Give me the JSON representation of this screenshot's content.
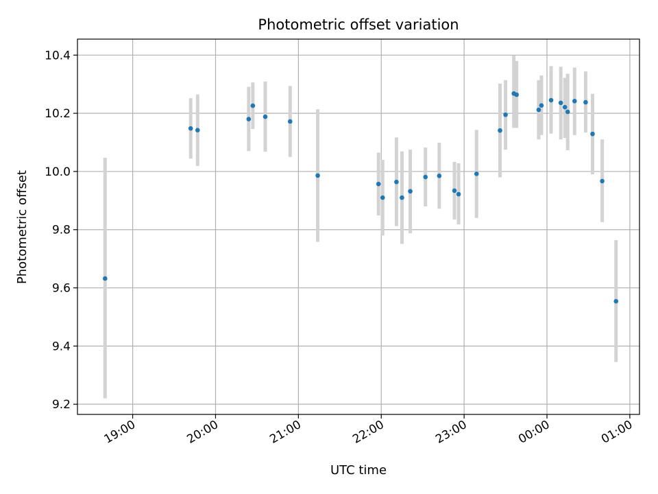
{
  "chart_data": {
    "type": "scatter",
    "title": "Photometric offset variation",
    "xlabel": "UTC time",
    "ylabel": "Photometric offset",
    "x_axis": {
      "kind": "time",
      "range": [
        "18:20",
        "01:07"
      ],
      "ticks": [
        "19:00",
        "20:00",
        "21:00",
        "22:00",
        "23:00",
        "00:00",
        "01:00"
      ]
    },
    "ylim": [
      9.165,
      10.455
    ],
    "yticks": [
      "9.2",
      "9.4",
      "9.6",
      "9.8",
      "10.0",
      "10.2",
      "10.4"
    ],
    "grid": true,
    "colors": {
      "points": "#1f77b4",
      "errorbars": "#d3d3d3",
      "grid": "#b0b0b0"
    },
    "points": [
      {
        "t": "18:40",
        "y": 9.632,
        "lo": 9.22,
        "hi": 10.047
      },
      {
        "t": "19:42",
        "y": 10.148,
        "lo": 10.044,
        "hi": 10.252
      },
      {
        "t": "19:47",
        "y": 10.142,
        "lo": 10.019,
        "hi": 10.265
      },
      {
        "t": "20:24",
        "y": 10.18,
        "lo": 10.07,
        "hi": 10.291
      },
      {
        "t": "20:27",
        "y": 10.226,
        "lo": 10.146,
        "hi": 10.306
      },
      {
        "t": "20:36",
        "y": 10.188,
        "lo": 10.068,
        "hi": 10.309
      },
      {
        "t": "20:54",
        "y": 10.172,
        "lo": 10.05,
        "hi": 10.294
      },
      {
        "t": "21:14",
        "y": 9.986,
        "lo": 9.758,
        "hi": 10.214
      },
      {
        "t": "21:58",
        "y": 9.957,
        "lo": 9.849,
        "hi": 10.065
      },
      {
        "t": "22:01",
        "y": 9.91,
        "lo": 9.78,
        "hi": 10.04
      },
      {
        "t": "22:11",
        "y": 9.964,
        "lo": 9.812,
        "hi": 10.117
      },
      {
        "t": "22:15",
        "y": 9.91,
        "lo": 9.751,
        "hi": 10.069
      },
      {
        "t": "22:21",
        "y": 9.932,
        "lo": 9.788,
        "hi": 10.075
      },
      {
        "t": "22:32",
        "y": 9.981,
        "lo": 9.88,
        "hi": 10.082
      },
      {
        "t": "22:42",
        "y": 9.985,
        "lo": 9.872,
        "hi": 10.099
      },
      {
        "t": "22:53",
        "y": 9.934,
        "lo": 9.835,
        "hi": 10.033
      },
      {
        "t": "22:56",
        "y": 9.922,
        "lo": 9.818,
        "hi": 10.028
      },
      {
        "t": "23:09",
        "y": 9.992,
        "lo": 9.84,
        "hi": 10.143
      },
      {
        "t": "23:26",
        "y": 10.141,
        "lo": 9.98,
        "hi": 10.302
      },
      {
        "t": "23:30",
        "y": 10.195,
        "lo": 10.075,
        "hi": 10.314
      },
      {
        "t": "23:36",
        "y": 10.268,
        "lo": 10.15,
        "hi": 10.398
      },
      {
        "t": "23:38",
        "y": 10.264,
        "lo": 10.15,
        "hi": 10.38
      },
      {
        "t": "23:54",
        "y": 10.212,
        "lo": 10.11,
        "hi": 10.314
      },
      {
        "t": "23:56",
        "y": 10.227,
        "lo": 10.125,
        "hi": 10.33
      },
      {
        "t": "00:03",
        "y": 10.245,
        "lo": 10.13,
        "hi": 10.362
      },
      {
        "t": "00:10",
        "y": 10.236,
        "lo": 10.11,
        "hi": 10.36
      },
      {
        "t": "00:13",
        "y": 10.221,
        "lo": 10.115,
        "hi": 10.322
      },
      {
        "t": "00:15",
        "y": 10.205,
        "lo": 10.073,
        "hi": 10.336
      },
      {
        "t": "00:20",
        "y": 10.242,
        "lo": 10.125,
        "hi": 10.357
      },
      {
        "t": "00:28",
        "y": 10.238,
        "lo": 10.134,
        "hi": 10.344
      },
      {
        "t": "00:33",
        "y": 10.129,
        "lo": 9.99,
        "hi": 10.267
      },
      {
        "t": "00:40",
        "y": 9.967,
        "lo": 9.826,
        "hi": 10.11
      },
      {
        "t": "00:50",
        "y": 9.554,
        "lo": 9.345,
        "hi": 9.764
      }
    ]
  }
}
